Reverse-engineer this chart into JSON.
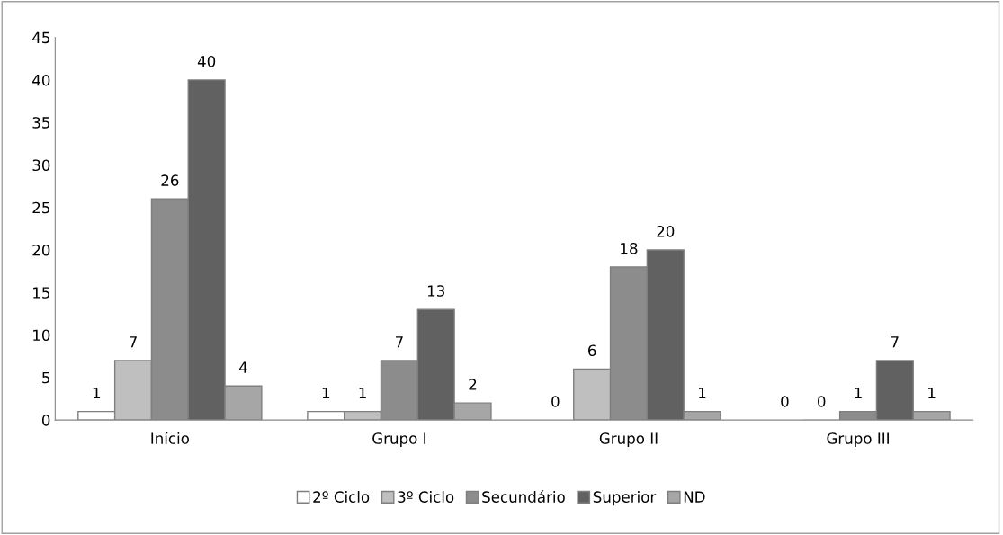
{
  "chart_data": {
    "type": "bar",
    "categories": [
      "Início",
      "Grupo I",
      "Grupo II",
      "Grupo III"
    ],
    "series": [
      {
        "name": "2º Ciclo",
        "color": "#ffffff",
        "values": [
          1,
          1,
          0,
          0
        ]
      },
      {
        "name": "3º Ciclo",
        "color": "#bfbfbf",
        "values": [
          7,
          1,
          6,
          0
        ]
      },
      {
        "name": "Secundário",
        "color": "#8c8c8c",
        "values": [
          26,
          7,
          18,
          1
        ]
      },
      {
        "name": "Superior",
        "color": "#616161",
        "values": [
          40,
          13,
          20,
          7
        ]
      },
      {
        "name": "ND",
        "color": "#a6a6a6",
        "values": [
          4,
          2,
          1,
          1
        ]
      }
    ],
    "ylim": [
      0,
      45
    ],
    "yticks": [
      0,
      5,
      10,
      15,
      20,
      25,
      30,
      35,
      40,
      45
    ],
    "grid": false,
    "legend": "bottom",
    "data_labels": true
  }
}
